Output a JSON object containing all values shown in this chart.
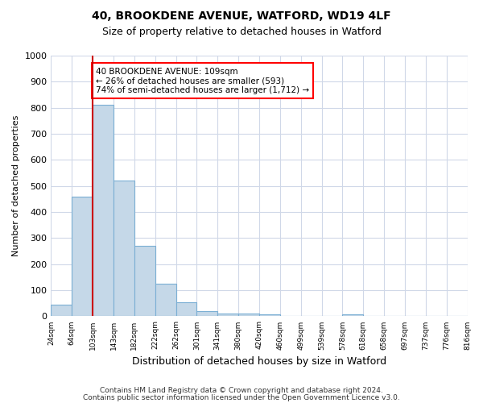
{
  "title1": "40, BROOKDENE AVENUE, WATFORD, WD19 4LF",
  "title2": "Size of property relative to detached houses in Watford",
  "xlabel": "Distribution of detached houses by size in Watford",
  "ylabel": "Number of detached properties",
  "bar_color": "#c5d8e8",
  "bar_edge_color": "#7bafd4",
  "background_color": "#ffffff",
  "grid_color": "#d0d8e8",
  "annotation_text": "40 BROOKDENE AVENUE: 109sqm\n← 26% of detached houses are smaller (593)\n74% of semi-detached houses are larger (1,712) →",
  "vline_color": "#cc0000",
  "footer1": "Contains HM Land Registry data © Crown copyright and database right 2024.",
  "footer2": "Contains public sector information licensed under the Open Government Licence v3.0.",
  "bins": [
    "24sqm",
    "64sqm",
    "103sqm",
    "143sqm",
    "182sqm",
    "222sqm",
    "262sqm",
    "301sqm",
    "341sqm",
    "380sqm",
    "420sqm",
    "460sqm",
    "499sqm",
    "539sqm",
    "578sqm",
    "618sqm",
    "658sqm",
    "697sqm",
    "737sqm",
    "776sqm",
    "816sqm"
  ],
  "values": [
    45,
    460,
    810,
    520,
    270,
    125,
    55,
    20,
    10,
    10,
    8,
    0,
    0,
    0,
    8,
    0,
    0,
    0,
    0,
    0
  ],
  "ylim": [
    0,
    1000
  ],
  "yticks": [
    0,
    100,
    200,
    300,
    400,
    500,
    600,
    700,
    800,
    900,
    1000
  ],
  "vline_bin_index": 2
}
